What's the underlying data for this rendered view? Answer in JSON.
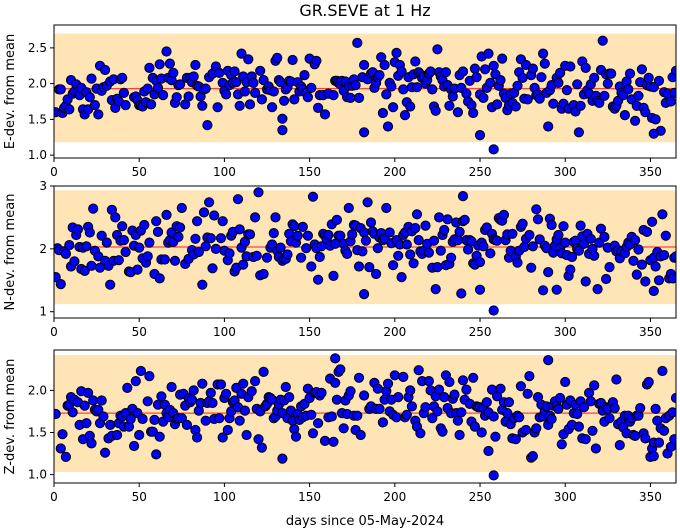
{
  "title": "GR.SEVE at 1 Hz",
  "xlabel": "days since 05-May-2024",
  "colors": {
    "band": "#ffe4b5",
    "mean_line": "#ff4040",
    "marker_fill": "#0000ff",
    "marker_edge": "#000000"
  },
  "chart_data": [
    {
      "type": "scatter",
      "title": "GR.SEVE at 1 Hz",
      "ylabel": "E-dev. from mean",
      "xlabel": "",
      "xlim": [
        0,
        365
      ],
      "ylim": [
        0.96,
        2.82
      ],
      "xticks": [
        0,
        50,
        100,
        150,
        200,
        250,
        300,
        350
      ],
      "yticks": [
        1.0,
        1.5,
        2.0,
        2.5
      ],
      "ytick_labels": [
        "1.0",
        "1.5",
        "2.0",
        "2.5"
      ],
      "mean": 1.93,
      "band": [
        1.18,
        2.7
      ],
      "grid": false,
      "seed": 11,
      "spread": 0.22,
      "outliers": [
        [
          258,
          1.08
        ],
        [
          322,
          2.6
        ],
        [
          182,
          1.32
        ],
        [
          352,
          1.3
        ],
        [
          134,
          1.35
        ],
        [
          250,
          1.28
        ]
      ],
      "points": []
    },
    {
      "type": "scatter",
      "title": "",
      "ylabel": "N-dev. from mean",
      "xlabel": "",
      "xlim": [
        0,
        365
      ],
      "ylim": [
        0.9,
        3.0
      ],
      "xticks": [
        0,
        50,
        100,
        150,
        200,
        250,
        300,
        350
      ],
      "yticks": [
        1,
        2,
        3
      ],
      "ytick_labels": [
        "1",
        "2",
        "3"
      ],
      "mean": 2.03,
      "band": [
        1.12,
        2.93
      ],
      "grid": false,
      "seed": 23,
      "spread": 0.28,
      "outliers": [
        [
          258,
          1.02
        ],
        [
          240,
          2.84
        ],
        [
          182,
          1.28
        ],
        [
          352,
          1.33
        ],
        [
          295,
          1.35
        ],
        [
          250,
          1.35
        ]
      ],
      "points": []
    },
    {
      "type": "scatter",
      "title": "",
      "ylabel": "Z-dev. from mean",
      "xlabel": "days since 05-May-2024",
      "xlim": [
        0,
        365
      ],
      "ylim": [
        0.9,
        2.48
      ],
      "xticks": [
        0,
        50,
        100,
        150,
        200,
        250,
        300,
        350
      ],
      "yticks": [
        1.0,
        1.5,
        2.0
      ],
      "ytick_labels": [
        "1.0",
        "1.5",
        "2.0"
      ],
      "mean": 1.73,
      "band": [
        1.03,
        2.42
      ],
      "grid": false,
      "seed": 37,
      "spread": 0.2,
      "outliers": [
        [
          258,
          0.99
        ],
        [
          165,
          2.38
        ],
        [
          290,
          2.36
        ],
        [
          134,
          1.19
        ],
        [
          352,
          1.22
        ],
        [
          255,
          1.28
        ]
      ],
      "points": []
    }
  ]
}
